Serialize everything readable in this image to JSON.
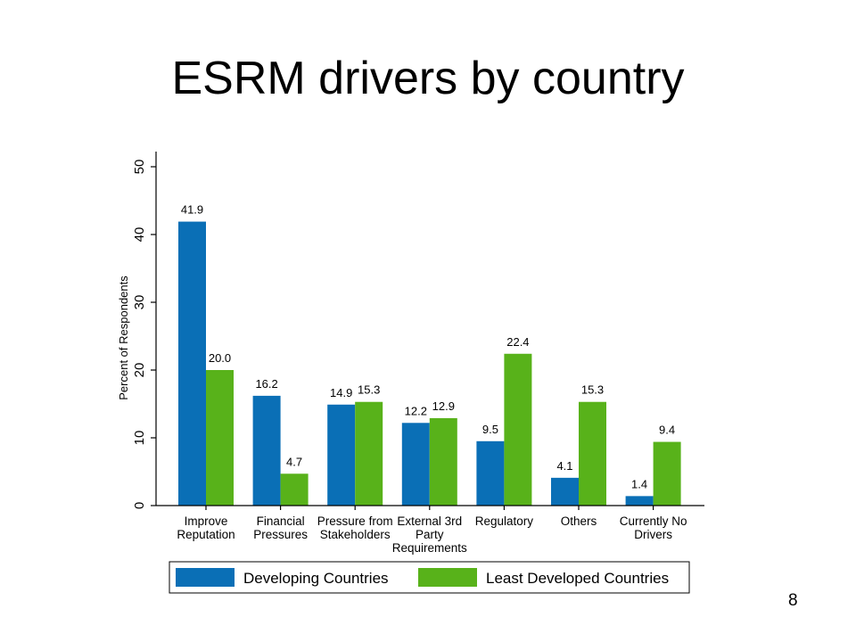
{
  "slide": {
    "title": "ESRM drivers by country",
    "page_number": "8"
  },
  "colors": {
    "developing": "#0a6fb6",
    "least_developed": "#58b21a",
    "axis": "#000000",
    "text": "#000000"
  },
  "chart_data": {
    "type": "bar",
    "title": "",
    "xlabel": "",
    "ylabel": "Percent of Respondents",
    "ylim": [
      0,
      50
    ],
    "yticks": [
      0,
      10,
      20,
      30,
      40,
      50
    ],
    "grid": false,
    "legend_position": "bottom",
    "categories": [
      [
        "Improve",
        "Reputation"
      ],
      [
        "Financial",
        "Pressures"
      ],
      [
        "Pressure from",
        "Stakeholders"
      ],
      [
        "External 3rd",
        "Party",
        "Requirements"
      ],
      [
        "Regulatory"
      ],
      [
        "Others"
      ],
      [
        "Currently No",
        "Drivers"
      ]
    ],
    "series": [
      {
        "name": "Developing Countries",
        "values": [
          41.9,
          16.2,
          14.9,
          12.2,
          9.5,
          4.1,
          1.4
        ],
        "labels": [
          "41.9",
          "16.2",
          "14.9",
          "12.2",
          "9.5",
          "4.1",
          "1.4"
        ]
      },
      {
        "name": "Least Developed Countries",
        "values": [
          20.0,
          4.7,
          15.3,
          12.9,
          22.4,
          15.3,
          9.4
        ],
        "labels": [
          "20.0",
          "4.7",
          "15.3",
          "12.9",
          "22.4",
          "15.3",
          "9.4"
        ]
      }
    ]
  }
}
